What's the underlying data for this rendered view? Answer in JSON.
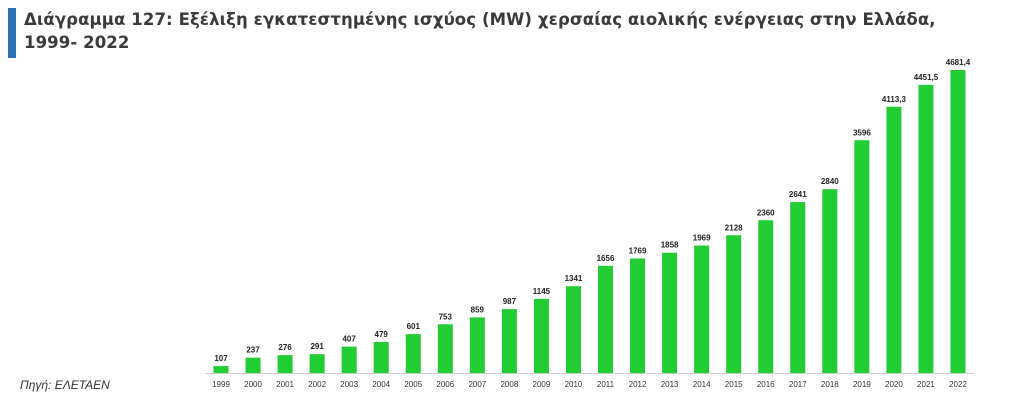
{
  "header": {
    "title_line1": "Διάγραμμα 127: Εξέλιξη εγκατεστημένης ισχύος (MW) χερσαίας αιολικής ενέργειας στην Ελλάδα,",
    "title_line2": "1999- 2022"
  },
  "footer": {
    "source": "Πηγή: ΕΛΕΤΑΕΝ"
  },
  "colors": {
    "bar": "#22cc33",
    "accent": "#2a6fb0",
    "axis": "#cfcfcf"
  },
  "chart_data": {
    "type": "bar",
    "title": "Διάγραμμα 127: Εξέλιξη εγκατεστημένης ισχύος (MW) χερσαίας αιολικής ενέργειας στην Ελλάδα, 1999- 2022",
    "xlabel": "",
    "ylabel": "",
    "grid": false,
    "categories": [
      "1999",
      "2000",
      "2001",
      "2002",
      "2003",
      "2004",
      "2005",
      "2006",
      "2007",
      "2008",
      "2009",
      "2010",
      "2011",
      "2012",
      "2013",
      "2014",
      "2015",
      "2016",
      "2017",
      "2018",
      "2019",
      "2020",
      "2021",
      "2022"
    ],
    "values": [
      107,
      237,
      276,
      291,
      407,
      479,
      601,
      753,
      859,
      987,
      1145,
      1341,
      1656,
      1769,
      1858,
      1969,
      2128,
      2360,
      2641,
      2840,
      3596,
      4113.3,
      4451.5,
      4681.4
    ],
    "value_labels": [
      "107",
      "237",
      "276",
      "291",
      "407",
      "479",
      "601",
      "753",
      "859",
      "987",
      "1145",
      "1341",
      "1656",
      "1769",
      "1858",
      "1969",
      "2128",
      "2360",
      "2641",
      "2840",
      "3596",
      "4113,3",
      "4451,5",
      "4681,4"
    ],
    "ylim": [
      0,
      4681.4
    ]
  }
}
